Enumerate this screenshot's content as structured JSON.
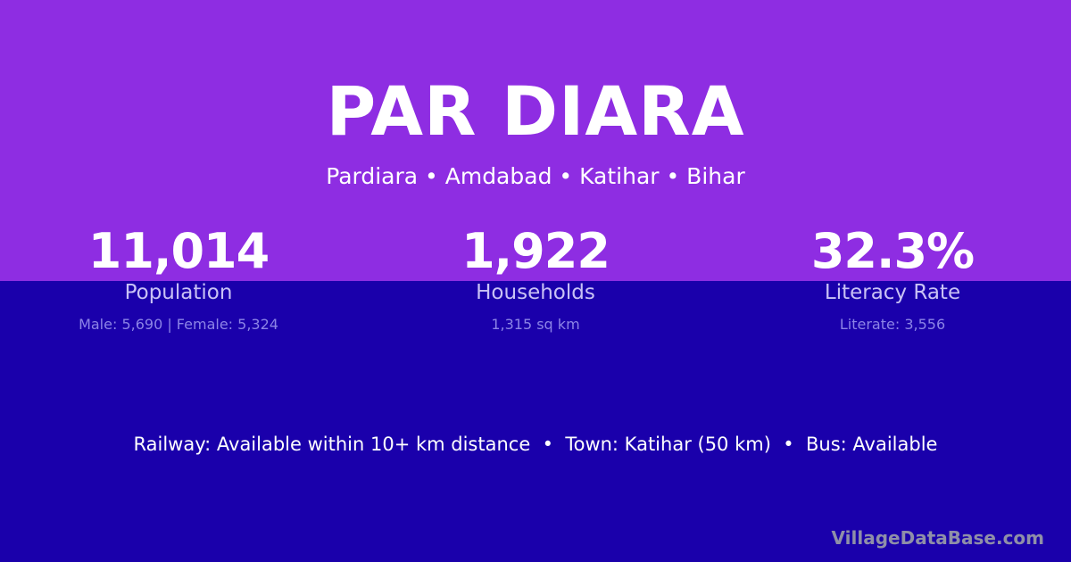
{
  "title": "PAR DIARA",
  "subtitle": "Pardiara • Amdabad • Katihar • Bihar",
  "stats": [
    {
      "value": "11,014",
      "label": "Population",
      "detail": "Male: 5,690 | Female: 5,324"
    },
    {
      "value": "1,922",
      "label": "Households",
      "detail": "1,315 sq km"
    },
    {
      "value": "32.3%",
      "label": "Literacy Rate",
      "detail": "Literate: 3,556"
    }
  ],
  "info": "Railway: Available within 10+ km distance  •  Town: Katihar (50 km)  •  Bus: Available",
  "brand": "VillageDataBase.com",
  "colors": {
    "top": "#8e2de2",
    "bottom": "#1a00ab"
  }
}
